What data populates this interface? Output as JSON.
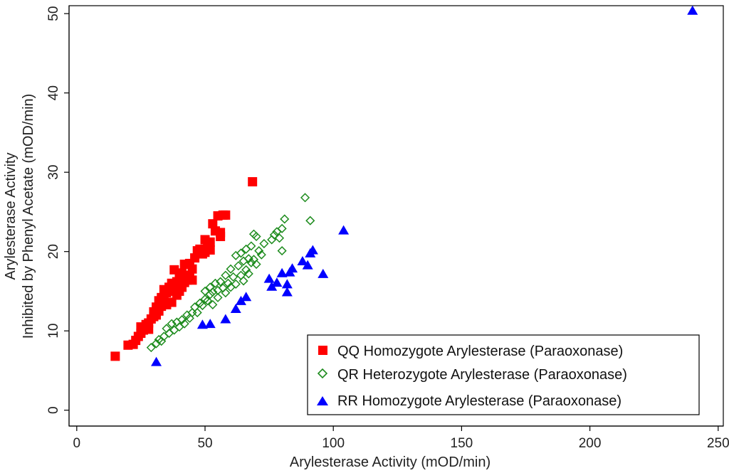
{
  "chart_data": {
    "type": "scatter",
    "xlabel": "Arylesterase Activity (mOD/min)",
    "ylabel_lines": [
      "Arylesterase Activity",
      "Inhibited by Phenyl Acetate (mOD/min)"
    ],
    "xlim": [
      -3,
      252
    ],
    "ylim": [
      -2,
      51
    ],
    "xticks": [
      0,
      50,
      100,
      150,
      200,
      250
    ],
    "yticks": [
      0,
      10,
      20,
      30,
      40,
      50
    ],
    "grid": false,
    "legend_position": "bottom-right",
    "series": [
      {
        "name": "QQ Homozygote Arylesterase (Paraoxonase)",
        "marker": "square",
        "color": "#ff0000",
        "points": [
          [
            15,
            6.8
          ],
          [
            20,
            8.2
          ],
          [
            22,
            8.3
          ],
          [
            23,
            8.8
          ],
          [
            24,
            9.3
          ],
          [
            25,
            9.7
          ],
          [
            25,
            10.5
          ],
          [
            26,
            10.1
          ],
          [
            27,
            10.8
          ],
          [
            28,
            11.0
          ],
          [
            28,
            10.2
          ],
          [
            29,
            11.5
          ],
          [
            30,
            11.8
          ],
          [
            30,
            12.4
          ],
          [
            31,
            12.0
          ],
          [
            31,
            13.0
          ],
          [
            32,
            12.5
          ],
          [
            32,
            13.8
          ],
          [
            33,
            13.1
          ],
          [
            33,
            14.2
          ],
          [
            34,
            14.0
          ],
          [
            34,
            15.2
          ],
          [
            35,
            13.3
          ],
          [
            35,
            14.8
          ],
          [
            36,
            15.0
          ],
          [
            36,
            15.5
          ],
          [
            37,
            13.6
          ],
          [
            37,
            16.0
          ],
          [
            38,
            15.3
          ],
          [
            38,
            17.7
          ],
          [
            39,
            14.5
          ],
          [
            39,
            16.2
          ],
          [
            40,
            15.0
          ],
          [
            40,
            16.8
          ],
          [
            41,
            15.5
          ],
          [
            41,
            17.3
          ],
          [
            42,
            16.1
          ],
          [
            42,
            18.4
          ],
          [
            43,
            16.4
          ],
          [
            44,
            17.0
          ],
          [
            44,
            18.5
          ],
          [
            45,
            16.4
          ],
          [
            45,
            17.8
          ],
          [
            46,
            19.2
          ],
          [
            47,
            20.1
          ],
          [
            48,
            20.3
          ],
          [
            49,
            19.7
          ],
          [
            50,
            21.5
          ],
          [
            50,
            19.9
          ],
          [
            51,
            20.8
          ],
          [
            52,
            21.2
          ],
          [
            52,
            20.2
          ],
          [
            53,
            23.5
          ],
          [
            54,
            22.6
          ],
          [
            55,
            24.5
          ],
          [
            56,
            21.9
          ],
          [
            56,
            22.4
          ],
          [
            57,
            24.6
          ],
          [
            58,
            24.6
          ],
          [
            68.5,
            28.8
          ]
        ]
      },
      {
        "name": "QR Heterozygote Arylesterase (Paraoxonase)",
        "marker": "diamond",
        "color": "#1e8c1e",
        "points": [
          [
            29,
            7.9
          ],
          [
            31,
            8.4
          ],
          [
            32,
            8.9
          ],
          [
            33,
            8.7
          ],
          [
            34,
            9.3
          ],
          [
            35,
            10.3
          ],
          [
            36,
            9.7
          ],
          [
            37,
            10.9
          ],
          [
            38,
            10.1
          ],
          [
            39,
            11.1
          ],
          [
            40,
            10.5
          ],
          [
            41,
            11.4
          ],
          [
            42,
            10.9
          ],
          [
            43,
            12.0
          ],
          [
            44,
            11.6
          ],
          [
            45,
            12.3
          ],
          [
            46,
            13.0
          ],
          [
            47,
            12.3
          ],
          [
            48,
            13.5
          ],
          [
            49,
            13.2
          ],
          [
            50,
            14.0
          ],
          [
            50,
            15.0
          ],
          [
            51,
            13.8
          ],
          [
            52,
            14.6
          ],
          [
            52,
            15.5
          ],
          [
            53,
            13.3
          ],
          [
            53,
            14.9
          ],
          [
            54,
            16.0
          ],
          [
            55,
            14.2
          ],
          [
            55,
            15.1
          ],
          [
            56,
            16.2
          ],
          [
            57,
            15.4
          ],
          [
            58,
            17.0
          ],
          [
            58,
            14.8
          ],
          [
            59,
            16.0
          ],
          [
            60,
            15.5
          ],
          [
            60,
            17.8
          ],
          [
            61,
            16.8
          ],
          [
            62,
            19.5
          ],
          [
            62,
            15.9
          ],
          [
            63,
            18.2
          ],
          [
            64,
            17.0
          ],
          [
            64,
            19.8
          ],
          [
            65,
            16.3
          ],
          [
            65,
            18.8
          ],
          [
            66,
            17.7
          ],
          [
            66,
            20.3
          ],
          [
            67,
            19.1
          ],
          [
            67,
            17.2
          ],
          [
            68,
            20.7
          ],
          [
            68,
            18.6
          ],
          [
            69,
            22.2
          ],
          [
            69,
            19.0
          ],
          [
            70,
            21.9
          ],
          [
            70,
            18.4
          ],
          [
            71,
            20.1
          ],
          [
            72,
            19.6
          ],
          [
            73,
            21.0
          ],
          [
            76,
            21.5
          ],
          [
            77,
            22.1
          ],
          [
            78,
            22.5
          ],
          [
            79,
            21.7
          ],
          [
            80,
            20.1
          ],
          [
            80,
            22.9
          ],
          [
            81,
            24.1
          ],
          [
            89,
            26.8
          ],
          [
            91,
            23.9
          ]
        ]
      },
      {
        "name": "RR Homozygote Arylesterase (Paraoxonase)",
        "marker": "triangle",
        "color": "#0000ff",
        "points": [
          [
            31,
            6.1
          ],
          [
            49,
            10.8
          ],
          [
            52,
            10.9
          ],
          [
            58,
            11.5
          ],
          [
            62,
            12.8
          ],
          [
            64,
            13.8
          ],
          [
            66,
            14.3
          ],
          [
            75,
            16.6
          ],
          [
            76,
            15.6
          ],
          [
            78,
            16.1
          ],
          [
            80,
            17.3
          ],
          [
            82,
            14.9
          ],
          [
            82,
            15.9
          ],
          [
            83,
            17.4
          ],
          [
            84,
            17.9
          ],
          [
            88,
            18.8
          ],
          [
            90,
            18.3
          ],
          [
            91,
            19.8
          ],
          [
            92,
            20.2
          ],
          [
            96,
            17.2
          ],
          [
            104,
            22.7
          ],
          [
            240,
            50.4
          ]
        ]
      }
    ]
  }
}
